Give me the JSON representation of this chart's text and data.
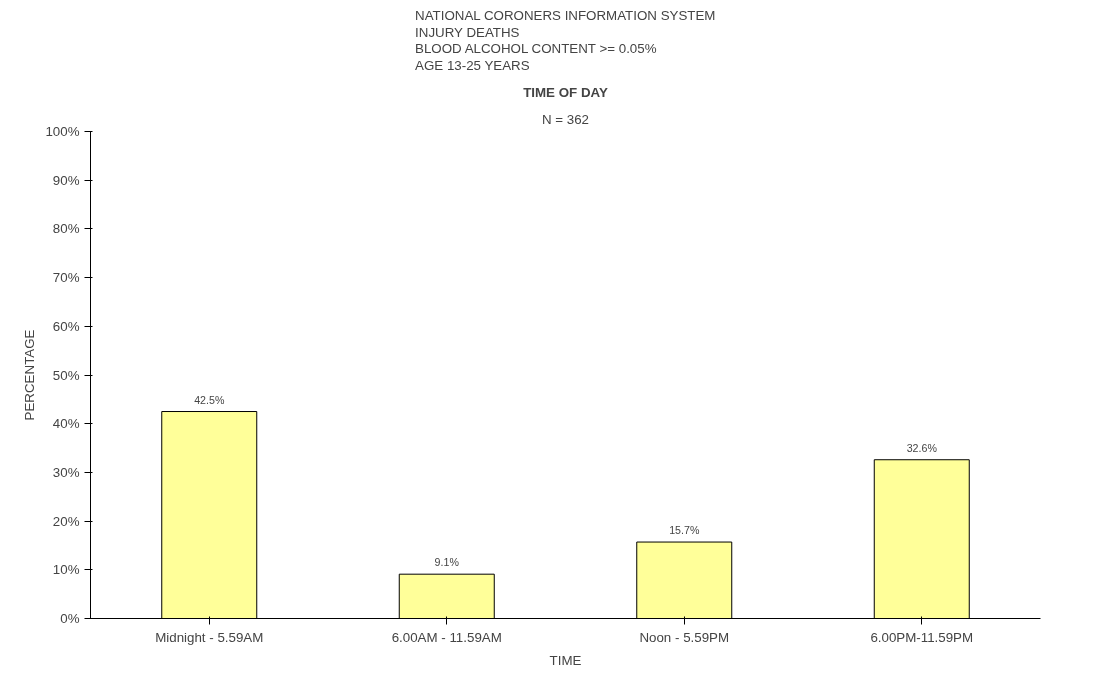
{
  "chart_data": {
    "type": "bar",
    "title": "NATIONAL CORONERS INFORMATION SYSTEM\nINJURY DEATHS\nBLOOD ALCOHOL CONTENT >= 0.05%\nAGE 13-25 YEARS",
    "subtitle": "TIME OF DAY",
    "annotations": [
      "N = 362"
    ],
    "xlabel": "TIME",
    "ylabel": "PERCENTAGE",
    "categories": [
      "Midnight - 5.59AM",
      "6.00AM - 11.59AM",
      "Noon - 5.59PM",
      "6.00PM-11.59PM"
    ],
    "values": [
      42.5,
      9.1,
      15.7,
      32.6
    ],
    "value_labels": [
      "42.5%",
      "9.1%",
      "15.7%",
      "32.6%"
    ],
    "color": "#ffff99",
    "ylim": [
      0,
      100
    ],
    "yticks": [
      {
        "value": 0,
        "label": "0%"
      },
      {
        "value": 10,
        "label": "10%"
      },
      {
        "value": 20,
        "label": "20%"
      },
      {
        "value": 30,
        "label": "30%"
      },
      {
        "value": 40,
        "label": "40%"
      },
      {
        "value": 50,
        "label": "50%"
      },
      {
        "value": 60,
        "label": "60%"
      },
      {
        "value": 70,
        "label": "70%"
      },
      {
        "value": 80,
        "label": "80%"
      },
      {
        "value": 90,
        "label": "90%"
      },
      {
        "value": 100,
        "label": "100%"
      }
    ],
    "grid": false
  }
}
